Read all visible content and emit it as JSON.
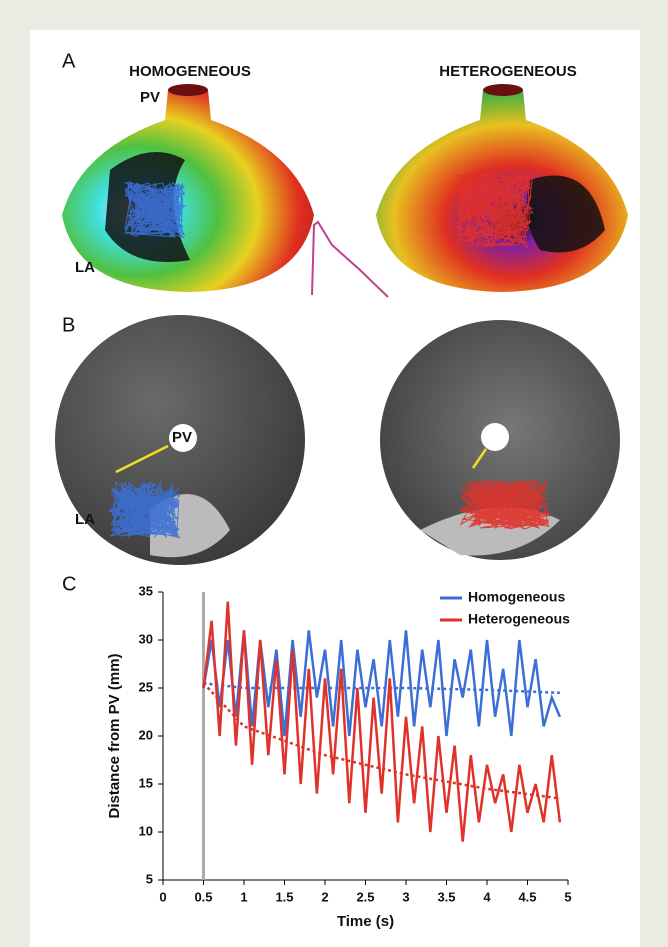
{
  "panels": {
    "a": {
      "label": "A",
      "left_title": "HOMOGENEOUS",
      "right_title": "HETEROGENEOUS",
      "pv": "PV",
      "la": "LA"
    },
    "b": {
      "label": "B",
      "pv": "PV",
      "la": "LA"
    },
    "c": {
      "label": "C"
    }
  },
  "chart_data": {
    "type": "line",
    "x_label": "Time (s)",
    "y_label": "Distance from PV (mm)",
    "xlim": [
      0,
      5
    ],
    "ylim": [
      5,
      35
    ],
    "xticks": [
      0,
      0.5,
      1,
      1.5,
      2,
      2.5,
      3,
      3.5,
      4,
      4.5,
      5
    ],
    "yticks": [
      5,
      10,
      15,
      20,
      25,
      30,
      35
    ],
    "marker_x": 0.5,
    "legend": "upper right",
    "x": [
      0.5,
      0.6,
      0.7,
      0.8,
      0.9,
      1,
      1.1,
      1.2,
      1.3,
      1.4,
      1.5,
      1.6,
      1.7,
      1.8,
      1.9,
      2,
      2.1,
      2.2,
      2.3,
      2.4,
      2.5,
      2.6,
      2.7,
      2.8,
      2.9,
      3,
      3.1,
      3.2,
      3.3,
      3.4,
      3.5,
      3.6,
      3.7,
      3.8,
      3.9,
      4,
      4.1,
      4.2,
      4.3,
      4.4,
      4.5,
      4.6,
      4.7,
      4.8,
      4.9
    ],
    "series": [
      {
        "name": "Homogeneous",
        "color": "#3b6fd6",
        "values": [
          25,
          30,
          23,
          30,
          22,
          31,
          21,
          30,
          23,
          29,
          20,
          30,
          22,
          31,
          24,
          29,
          21,
          30,
          20,
          29,
          23,
          28,
          21,
          30,
          22,
          31,
          21,
          29,
          23,
          30,
          20,
          28,
          24,
          29,
          21,
          30,
          22,
          27,
          20,
          30,
          23,
          28,
          21,
          24,
          22
        ],
        "trend": {
          "x": [
            0.5,
            1,
            2,
            3,
            4,
            4.9
          ],
          "values": [
            25.5,
            25,
            25,
            25,
            24.8,
            24.5
          ]
        }
      },
      {
        "name": "Heterogeneous",
        "color": "#e0312a",
        "values": [
          25,
          32,
          20,
          34,
          19,
          31,
          17,
          30,
          18,
          28,
          16,
          29,
          15,
          27,
          14,
          26,
          16,
          27,
          13,
          25,
          12,
          24,
          14,
          26,
          11,
          22,
          13,
          21,
          10,
          20,
          12,
          19,
          9,
          18,
          11,
          17,
          13,
          16,
          10,
          17,
          12,
          15,
          11,
          18,
          11
        ],
        "trend": {
          "x": [
            0.5,
            1,
            2,
            3,
            4,
            4.9
          ],
          "values": [
            25.5,
            21,
            18,
            16,
            14.5,
            13.5
          ]
        }
      }
    ]
  }
}
